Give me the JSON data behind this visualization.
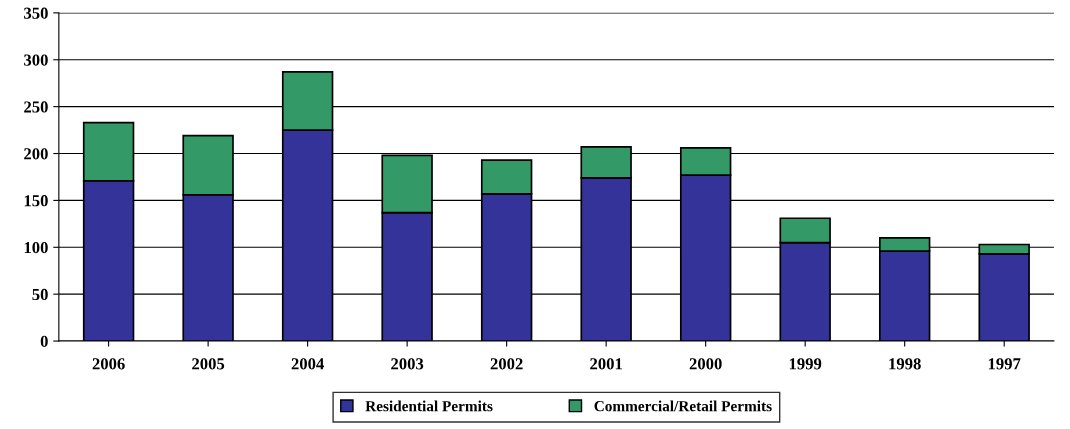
{
  "chart_data": {
    "type": "bar",
    "stacked": true,
    "categories": [
      "2006",
      "2005",
      "2004",
      "2003",
      "2002",
      "2001",
      "2000",
      "1999",
      "1998",
      "1997"
    ],
    "series": [
      {
        "name": "Residential Permits",
        "color": "#333399",
        "values": [
          171,
          156,
          225,
          137,
          157,
          174,
          177,
          105,
          96,
          93
        ]
      },
      {
        "name": "Commercial/Retail Permits",
        "color": "#339966",
        "values": [
          62,
          63,
          62,
          61,
          36,
          33,
          29,
          26,
          14,
          10
        ]
      }
    ],
    "ylim": [
      0,
      350
    ],
    "yticks": [
      0,
      50,
      100,
      150,
      200,
      250,
      300,
      350
    ],
    "grid": "y",
    "legend": "bottom"
  }
}
